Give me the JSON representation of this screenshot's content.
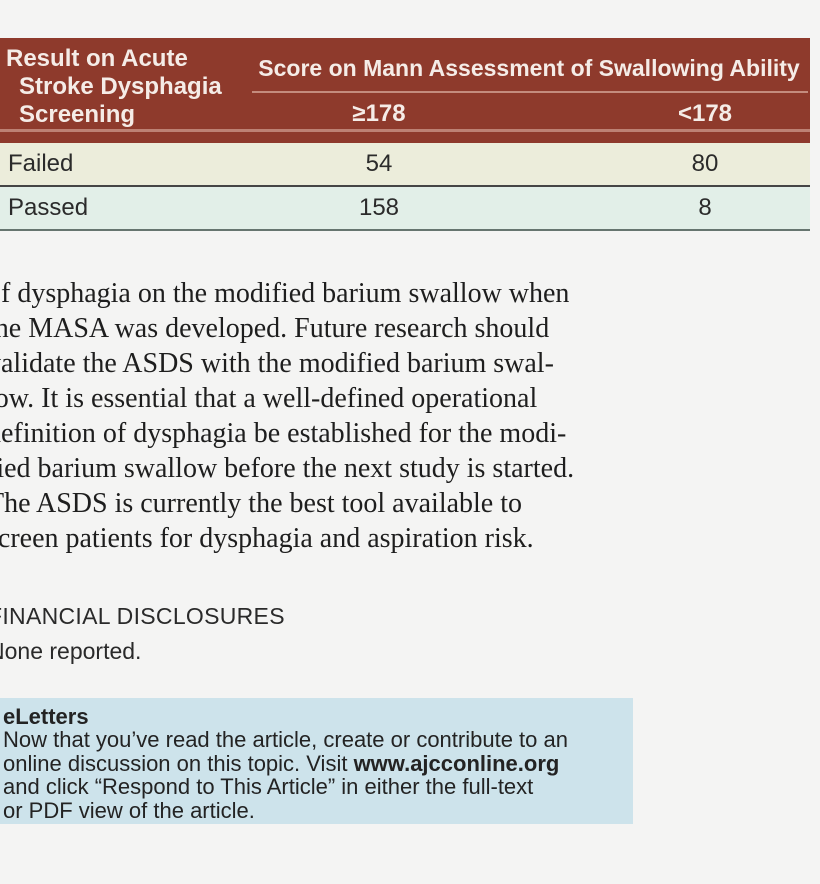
{
  "colors": {
    "table_header_bg": "#8e3a2c",
    "table_header_text": "#f5ece7",
    "table_header_rule": "#c48c7e",
    "row_failed_bg": "#eceddb",
    "row_passed_bg": "#e2efe8",
    "eletters_box_bg": "#cde3eb",
    "page_bg": "#f4f4f3"
  },
  "table": {
    "header_col1_lines": [
      "Result on Acute",
      "Stroke Dysphagia",
      "Screening"
    ],
    "span_header": "Score on Mann Assessment of Swallowing Ability",
    "subheaders": [
      "≥178",
      "<178"
    ],
    "rows": [
      {
        "label": "Failed",
        "ge178": "54",
        "lt178": "80"
      },
      {
        "label": "Passed",
        "ge178": "158",
        "lt178": "8"
      }
    ]
  },
  "paragraph": {
    "lines": [
      "of dysphagia on the modified barium swallow when",
      "the MASA was developed. Future research should",
      "validate the ASDS with the modified barium swal-",
      "low. It is essential that a well-defined operational",
      "definition of dysphagia be established for the modi-",
      "fied barium swallow before the next study is started.",
      "The ASDS is currently the best tool available to",
      "screen patients for dysphagia and aspiration risk."
    ]
  },
  "disclosures": {
    "heading": "FINANCIAL DISCLOSURES",
    "body": "None reported."
  },
  "eletters": {
    "heading": "eLetters",
    "line1": "Now that you’ve read the article, create or contribute to an",
    "line2_pre": "online discussion on this topic. Visit ",
    "line2_bold": "www.ajcconline.org",
    "line3": "and click “Respond to This Article” in either the full-text",
    "line4": "or PDF view of the article."
  }
}
